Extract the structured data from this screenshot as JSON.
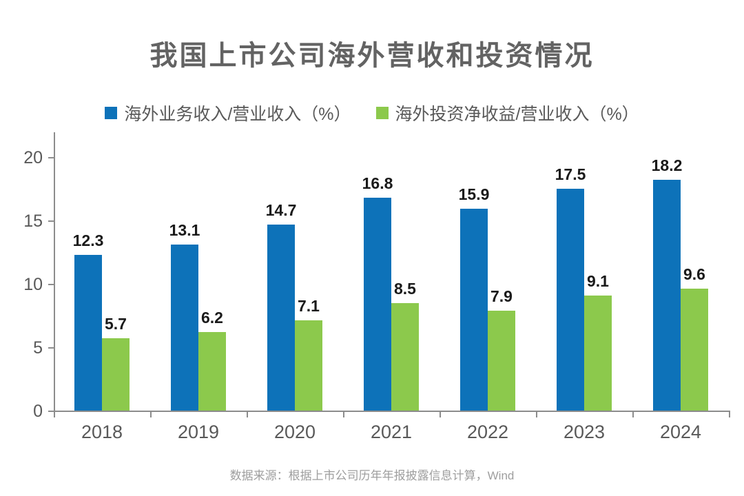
{
  "title": "我国上市公司海外营收和投资情况",
  "source_note": "数据来源：根据上市公司历年年报披露信息计算，Wind",
  "chart_data": {
    "type": "bar",
    "title": "我国上市公司海外营收和投资情况",
    "categories": [
      "2018",
      "2019",
      "2020",
      "2021",
      "2022",
      "2023",
      "2024"
    ],
    "series": [
      {
        "name": "海外业务收入/营业收入（%）",
        "color": "#0d72b9",
        "values": [
          12.3,
          13.1,
          14.7,
          16.8,
          15.9,
          17.5,
          18.2
        ]
      },
      {
        "name": "海外投资净收益/营业收入（%）",
        "color": "#8cc94c",
        "values": [
          5.7,
          6.2,
          7.1,
          8.5,
          7.9,
          9.1,
          9.6
        ]
      }
    ],
    "xlabel": "",
    "ylabel": "",
    "ylim": [
      0,
      20
    ],
    "yticks": [
      0,
      5,
      10,
      15,
      20
    ],
    "grid": false,
    "legend_position": "top-left",
    "value_labels": true,
    "source": "数据来源：根据上市公司历年年报披露信息计算，Wind"
  }
}
